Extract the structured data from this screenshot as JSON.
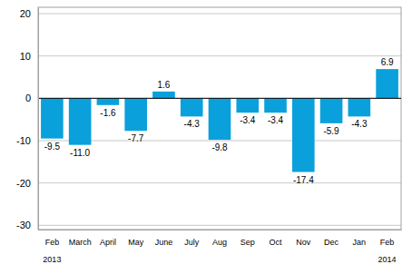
{
  "chart_data": {
    "type": "bar",
    "categories": [
      "Feb",
      "March",
      "April",
      "May",
      "June",
      "July",
      "Aug",
      "Sep",
      "Oct",
      "Nov",
      "Dec",
      "Jan",
      "Feb"
    ],
    "values": [
      -9.5,
      -11.0,
      -1.6,
      -7.7,
      1.6,
      -4.3,
      -9.8,
      -3.4,
      -3.4,
      -17.4,
      -5.9,
      -4.3,
      6.9
    ],
    "value_labels": [
      "-9.5",
      "-11.0",
      "-1.6",
      "-7.7",
      "1.6",
      "-4.3",
      "-9.8",
      "-3.4",
      "-3.4",
      "-17.4",
      "-5.9",
      "-4.3",
      "6.9"
    ],
    "color": "#0aa0dc",
    "ylim": [
      -31,
      21.5
    ],
    "yticks": [
      -30,
      -20,
      -10,
      0,
      10,
      20
    ],
    "grid": true,
    "data_labels": true,
    "annotations": [
      {
        "text": "2013",
        "category": 0
      },
      {
        "text": "2014",
        "category": 12
      }
    ]
  }
}
